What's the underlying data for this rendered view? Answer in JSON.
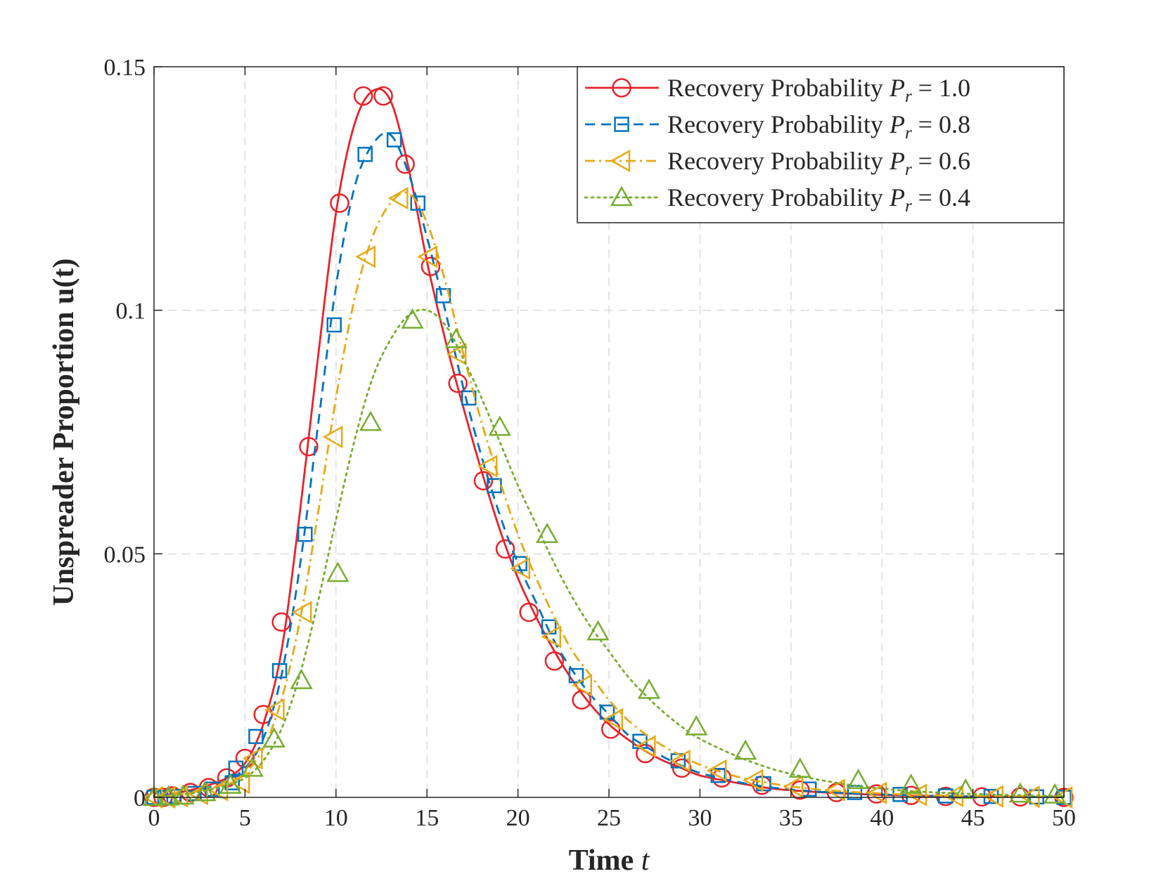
{
  "chart_data": {
    "type": "line",
    "title": "",
    "xlabel": "Time",
    "xlabel_var": "t",
    "ylabel": "Unspreader Proportion u(t)",
    "xlim": [
      0,
      50
    ],
    "ylim": [
      0,
      0.15
    ],
    "xticks": [
      0,
      5,
      10,
      15,
      20,
      25,
      30,
      35,
      40,
      45,
      50
    ],
    "xtick_labels": [
      "0",
      "5",
      "10",
      "15",
      "20",
      "25",
      "30",
      "35",
      "40",
      "45",
      "50"
    ],
    "yticks": [
      0,
      0.05,
      0.1,
      0.15
    ],
    "ytick_labels": [
      "0",
      "0.05",
      "0.1",
      "0.15"
    ],
    "grid": true,
    "legend_position": "top-right",
    "series": [
      {
        "name": "Recovery Probability",
        "symbol_base": "P",
        "symbol_sub": "r",
        "value_label": "= 1.0",
        "color": "#e8222a",
        "dash": "solid",
        "marker": "circle",
        "curve": {
          "x": [
            0,
            2,
            3,
            4,
            5,
            6,
            7,
            8,
            9,
            10,
            11,
            12,
            13,
            14,
            15,
            16,
            17,
            18,
            19,
            20,
            21,
            22,
            23,
            24,
            25,
            26,
            27,
            28,
            29,
            30,
            32,
            34,
            36,
            38,
            40,
            42,
            45,
            48,
            50
          ],
          "y": [
            0,
            0.0015,
            0.0025,
            0.004,
            0.007,
            0.015,
            0.03,
            0.058,
            0.09,
            0.12,
            0.138,
            0.145,
            0.143,
            0.129,
            0.11,
            0.094,
            0.08,
            0.067,
            0.055,
            0.045,
            0.037,
            0.03,
            0.024,
            0.019,
            0.015,
            0.012,
            0.0095,
            0.0075,
            0.006,
            0.0045,
            0.003,
            0.0018,
            0.0012,
            0.0008,
            0.0005,
            0.0003,
            0.0002,
            0.0001,
            0.0001
          ]
        },
        "markers": {
          "x": [
            0,
            0.5,
            1,
            2,
            3,
            4,
            5,
            6,
            7,
            8.5,
            10.2,
            11.5,
            12.6,
            13.8,
            15.2,
            16.7,
            18.1,
            19.3,
            20.6,
            22,
            23.5,
            25.1,
            27,
            29,
            31.2,
            33.4,
            35.5,
            37.5,
            39.7,
            41.6,
            43.5,
            45.5,
            47.6,
            50
          ],
          "y": [
            0,
            0,
            0.0003,
            0.001,
            0.002,
            0.004,
            0.008,
            0.017,
            0.036,
            0.072,
            0.122,
            0.144,
            0.144,
            0.13,
            0.109,
            0.085,
            0.065,
            0.051,
            0.038,
            0.028,
            0.02,
            0.014,
            0.009,
            0.006,
            0.004,
            0.0025,
            0.0015,
            0.001,
            0.0007,
            0.0004,
            0.0002,
            0.0001,
            0.0001,
            0
          ]
        }
      },
      {
        "name": "Recovery Probability",
        "symbol_base": "P",
        "symbol_sub": "r",
        "value_label": "= 0.8",
        "color": "#0072bd",
        "dash": "dashed",
        "marker": "square",
        "curve": {
          "x": [
            0,
            2,
            3,
            4,
            5,
            6,
            7,
            8,
            9,
            10,
            11,
            12,
            13,
            14,
            15,
            16,
            17,
            18,
            19,
            20,
            21,
            22,
            23,
            24,
            25,
            26,
            27,
            28,
            29,
            30,
            32,
            34,
            36,
            38,
            40,
            42,
            45,
            48,
            50
          ],
          "y": [
            0,
            0.0012,
            0.002,
            0.0035,
            0.006,
            0.012,
            0.025,
            0.047,
            0.076,
            0.105,
            0.125,
            0.134,
            0.136,
            0.128,
            0.115,
            0.1,
            0.084,
            0.07,
            0.058,
            0.048,
            0.04,
            0.032,
            0.026,
            0.021,
            0.017,
            0.013,
            0.0105,
            0.0083,
            0.0065,
            0.005,
            0.0032,
            0.002,
            0.0013,
            0.0009,
            0.0006,
            0.0004,
            0.0002,
            0.0001,
            0.0001
          ]
        },
        "markers": {
          "x": [
            0,
            0.6,
            1.1,
            2.2,
            3.2,
            4.3,
            4.5,
            5.6,
            6.9,
            8.3,
            9.9,
            11.6,
            13.2,
            14.5,
            15.9,
            17.3,
            18.7,
            20.1,
            21.7,
            23.2,
            24.9,
            26.7,
            28.8,
            31,
            33.5,
            36,
            38.5,
            41,
            43.5,
            46,
            48.5,
            50
          ],
          "y": [
            0,
            0,
            0.0002,
            0.0008,
            0.0017,
            0.003,
            0.006,
            0.0125,
            0.026,
            0.054,
            0.097,
            0.132,
            0.135,
            0.122,
            0.103,
            0.082,
            0.064,
            0.048,
            0.035,
            0.025,
            0.0175,
            0.0115,
            0.0075,
            0.0045,
            0.0028,
            0.0017,
            0.001,
            0.0006,
            0.0003,
            0.0002,
            0.0001,
            0
          ]
        }
      },
      {
        "name": "Recovery Probability",
        "symbol_base": "P",
        "symbol_sub": "r",
        "value_label": "= 0.6",
        "color": "#e6a917",
        "dash": "dashdot",
        "marker": "triangle-left",
        "curve": {
          "x": [
            0,
            2,
            3,
            4,
            5,
            6,
            7,
            8,
            9,
            10,
            11,
            12,
            13,
            14,
            15,
            16,
            17,
            18,
            19,
            20,
            21,
            22,
            23,
            24,
            25,
            26,
            27,
            28,
            29,
            30,
            32,
            34,
            36,
            38,
            40,
            42,
            45,
            48,
            50
          ],
          "y": [
            0,
            0.001,
            0.0018,
            0.003,
            0.005,
            0.01,
            0.02,
            0.036,
            0.058,
            0.082,
            0.102,
            0.115,
            0.122,
            0.124,
            0.118,
            0.106,
            0.091,
            0.077,
            0.065,
            0.054,
            0.045,
            0.037,
            0.03,
            0.025,
            0.02,
            0.016,
            0.013,
            0.0105,
            0.0085,
            0.0067,
            0.0043,
            0.0028,
            0.0018,
            0.0012,
            0.0008,
            0.0005,
            0.0003,
            0.0002,
            0.0001
          ]
        },
        "markers": {
          "x": [
            0,
            0.7,
            1.4,
            2.5,
            3.6,
            4.8,
            5.5,
            6.7,
            8.2,
            9.9,
            11.7,
            13.5,
            15.1,
            16.7,
            18.4,
            20.2,
            21.9,
            23.6,
            25.3,
            27.1,
            29,
            31,
            33,
            35.2,
            37.5,
            39.8,
            42,
            44,
            46.2,
            48.2,
            50
          ],
          "y": [
            0,
            0,
            0.0002,
            0.0007,
            0.0015,
            0.003,
            0.008,
            0.018,
            0.038,
            0.074,
            0.111,
            0.123,
            0.111,
            0.091,
            0.068,
            0.047,
            0.033,
            0.023,
            0.016,
            0.0105,
            0.0075,
            0.0055,
            0.0035,
            0.0022,
            0.0015,
            0.0009,
            0.0005,
            0.0003,
            0.0002,
            0.0001,
            0
          ]
        }
      },
      {
        "name": "Recovery Probability",
        "symbol_base": "P",
        "symbol_sub": "r",
        "value_label": "= 0.4",
        "color": "#77ac30",
        "dash": "dotted",
        "marker": "triangle-up",
        "curve": {
          "x": [
            0,
            2,
            3,
            4,
            5,
            6,
            7,
            8,
            9,
            10,
            11,
            12,
            13,
            14,
            15,
            16,
            17,
            18,
            19,
            20,
            21,
            22,
            23,
            24,
            25,
            26,
            27,
            28,
            29,
            30,
            32,
            34,
            36,
            38,
            40,
            42,
            45,
            48,
            50
          ],
          "y": [
            0,
            0.0008,
            0.0015,
            0.0025,
            0.004,
            0.0075,
            0.014,
            0.025,
            0.04,
            0.057,
            0.073,
            0.086,
            0.094,
            0.099,
            0.1,
            0.097,
            0.09,
            0.082,
            0.073,
            0.064,
            0.056,
            0.048,
            0.041,
            0.035,
            0.03,
            0.025,
            0.021,
            0.0175,
            0.0145,
            0.012,
            0.0085,
            0.0058,
            0.004,
            0.0027,
            0.0018,
            0.0012,
            0.0007,
            0.0004,
            0.0003
          ]
        },
        "markers": {
          "x": [
            0,
            0.8,
            1.6,
            2.8,
            4.2,
            5.4,
            6.6,
            8.1,
            10.1,
            11.9,
            14.2,
            16.6,
            19,
            21.6,
            24.4,
            27.2,
            29.8,
            32.5,
            35.5,
            38.7,
            41.6,
            44.6,
            47.6,
            49.5
          ],
          "y": [
            0,
            0.0001,
            0.0003,
            0.001,
            0.0025,
            0.006,
            0.012,
            0.024,
            0.046,
            0.077,
            0.098,
            0.094,
            0.076,
            0.054,
            0.034,
            0.022,
            0.0145,
            0.0095,
            0.0058,
            0.0035,
            0.0025,
            0.0015,
            0.0007,
            0.0005
          ]
        }
      }
    ]
  }
}
